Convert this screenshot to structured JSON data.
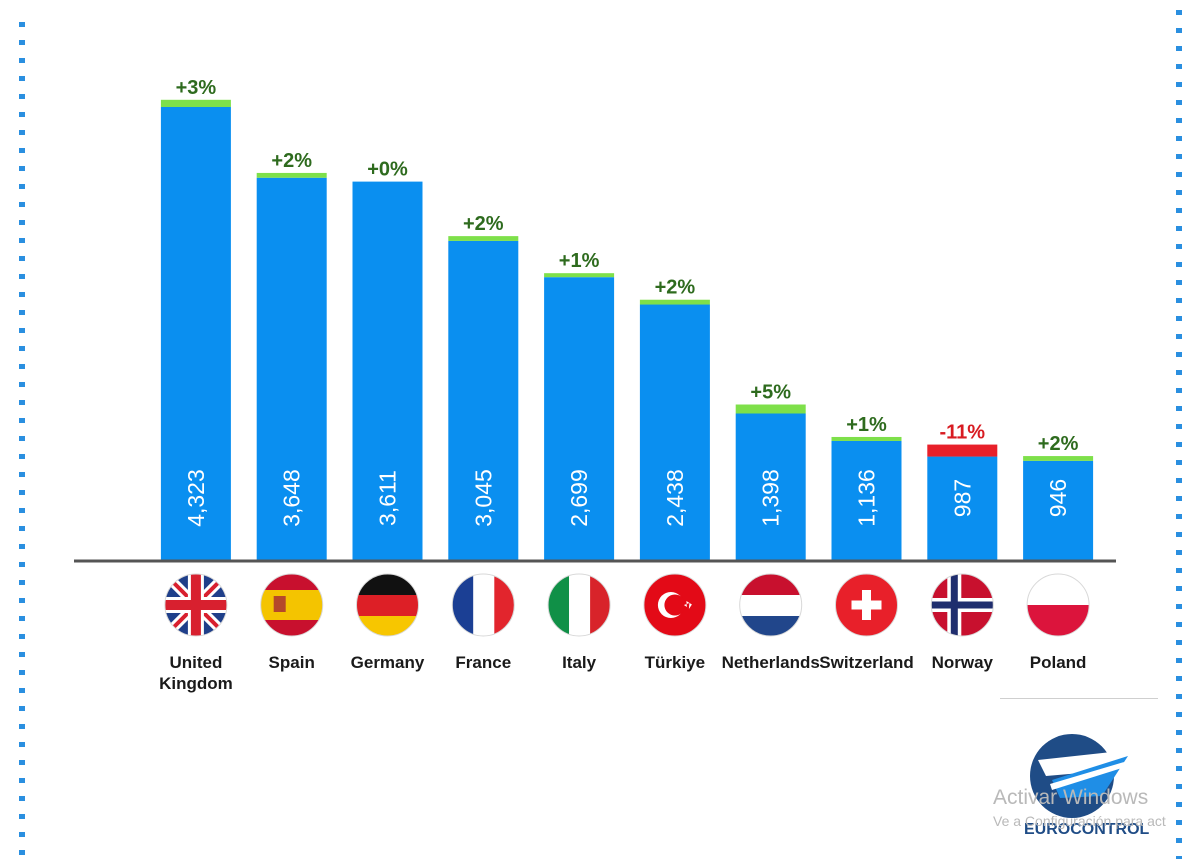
{
  "chart_data": {
    "type": "bar",
    "categories": [
      "United Kingdom",
      "Spain",
      "Germany",
      "France",
      "Italy",
      "Türkiye",
      "Netherlands",
      "Switzerland",
      "Norway",
      "Poland"
    ],
    "category_lines": [
      [
        "United",
        "Kingdom"
      ],
      [
        "Spain"
      ],
      [
        "Germany"
      ],
      [
        "France"
      ],
      [
        "Italy"
      ],
      [
        "Türkiye"
      ],
      [
        "Netherlands"
      ],
      [
        "Switzerland"
      ],
      [
        "Norway"
      ],
      [
        "Poland"
      ]
    ],
    "values": [
      4323,
      3648,
      3611,
      3045,
      2699,
      2438,
      1398,
      1136,
      987,
      946
    ],
    "value_labels": [
      "4,323",
      "3,648",
      "3,611",
      "3,045",
      "2,699",
      "2,438",
      "1,398",
      "1,136",
      "987",
      "946"
    ],
    "changes": [
      "+3%",
      "+2%",
      "+0%",
      "+2%",
      "+1%",
      "+2%",
      "+5%",
      "+1%",
      "-11%",
      "+2%"
    ],
    "change_values": [
      3,
      2,
      0,
      2,
      1,
      2,
      5,
      1,
      -11,
      2
    ],
    "flags": [
      "flag-uk",
      "flag-spain",
      "flag-germany",
      "flag-france",
      "flag-italy",
      "flag-turkiye",
      "flag-netherlands",
      "flag-switzerland",
      "flag-norway",
      "flag-poland"
    ],
    "title": "",
    "xlabel": "",
    "ylabel": "",
    "ylim": [
      0,
      4600
    ],
    "grid": false,
    "legend": "none"
  },
  "colors": {
    "bar": "#0a8ff0",
    "increase": "#7ee04a",
    "decrease": "#e8202a",
    "increase_text": "#2e6b1e",
    "decrease_text": "#d81c22",
    "axis": "#555555",
    "frame_dots": "#2a8fe0"
  },
  "logo": {
    "text": "EUROCONTROL"
  },
  "watermark": {
    "line1": "Activar Windows",
    "line2": "Ve a Configuración para act"
  }
}
